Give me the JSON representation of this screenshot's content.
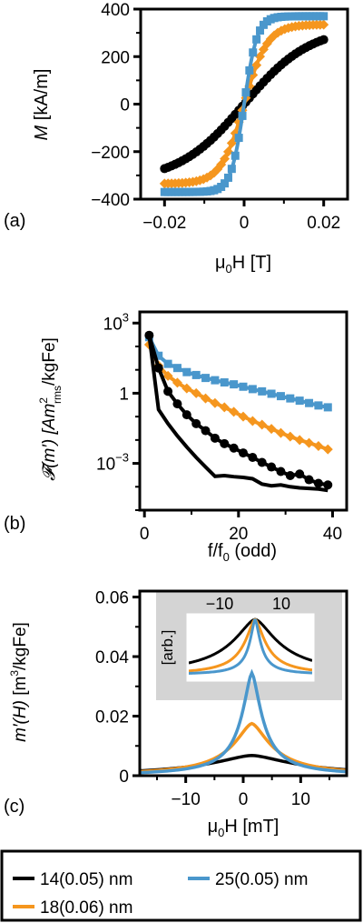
{
  "colors": {
    "d14": "#000000",
    "d18": "#f5961e",
    "d25": "#4a97cc",
    "inset_bg": "#d4d4d4"
  },
  "legend": {
    "d14": "14(0.05) nm",
    "d18": "18(0.06) nm",
    "d25": "25(0.05) nm"
  },
  "chart_data": [
    {
      "type": "scatter",
      "panel_label": "(a)",
      "xlabel_main": "μ",
      "xlabel_sub": "0",
      "xlabel_rest": "H [T]",
      "ylabel_var": "M",
      "ylabel_unit": " [kA/m]",
      "xlim": [
        -0.026,
        0.026
      ],
      "ylim": [
        -400,
        400
      ],
      "xticks": [
        -0.02,
        0,
        0.02
      ],
      "xtick_labels": [
        "−0.02",
        "0",
        "0.02"
      ],
      "yticks": [
        -400,
        -200,
        0,
        200,
        400
      ],
      "ytick_labels": [
        "−400",
        "−200",
        "0",
        "200",
        "400"
      ],
      "series": [
        {
          "key": "d14",
          "marker": "circle",
          "Ms": 325,
          "a": 0.0166
        },
        {
          "key": "d18",
          "marker": "diamond",
          "Ms": 335,
          "a": 0.0058
        },
        {
          "key": "d25",
          "marker": "square",
          "Ms": 370,
          "a": 0.0033
        }
      ],
      "x_range": [
        -0.02,
        0.02
      ]
    },
    {
      "type": "line",
      "panel_label": "(b)",
      "xlabel_main": "f/f",
      "xlabel_sub": "0",
      "xlabel_rest": " (odd)",
      "ylabel": "𝓕(m′) [Am",
      "ylabel_sup": "2",
      "ylabel_sub": "rms",
      "ylabel_rest": "/kgFe]",
      "log_y": true,
      "xlim": [
        -1,
        43
      ],
      "ylim": [
        1e-05,
        3000
      ],
      "xticks": [
        0,
        20,
        40
      ],
      "xtick_labels": [
        "0",
        "20",
        "40"
      ],
      "ytick_labels": [
        {
          "base": "10",
          "exp": "3",
          "value": 1000
        },
        {
          "base": "1",
          "exp": "",
          "value": 1
        },
        {
          "base": "10",
          "exp": "−3",
          "value": 0.001
        }
      ],
      "x": [
        1,
        3,
        5,
        7,
        9,
        11,
        13,
        15,
        17,
        19,
        21,
        23,
        25,
        27,
        29,
        31,
        33,
        35,
        37,
        39
      ],
      "series": [
        {
          "key": "d25",
          "marker": "square",
          "values": [
            250,
            40,
            18,
            12,
            8,
            6,
            4.5,
            3.6,
            2.9,
            2.4,
            1.9,
            1.5,
            1.2,
            0.95,
            0.75,
            0.6,
            0.48,
            0.38,
            0.3,
            0.25
          ]
        },
        {
          "key": "d18",
          "marker": "diamond",
          "values": [
            120,
            15,
            5.5,
            2.8,
            1.6,
            1.0,
            0.6,
            0.38,
            0.25,
            0.16,
            0.1,
            0.065,
            0.045,
            0.03,
            0.02,
            0.014,
            0.01,
            0.0075,
            0.0055,
            0.004
          ]
        },
        {
          "key": "d14",
          "marker": "circle",
          "values": [
            300,
            12,
            1.2,
            0.35,
            0.12,
            0.05,
            0.025,
            0.012,
            0.007,
            0.0045,
            0.0028,
            0.0018,
            0.0011,
            0.0007,
            0.00045,
            0.0003,
            0.00035,
            0.0002,
            0.00014,
            0.00012
          ]
        },
        {
          "key": "d14",
          "marker": "none",
          "values": [
            300,
            0.2,
            0.05,
            0.015,
            0.005,
            0.0018,
            0.0007,
            0.00028,
            0.0003,
            0.00027,
            0.00025,
            0.00022,
            0.00013,
            0.00011,
            0.00012,
            0.0001,
            9e-05,
            8.5e-05,
            8e-05,
            7e-05
          ]
        }
      ]
    },
    {
      "type": "line",
      "panel_label": "(c)",
      "xlabel_main": "μ",
      "xlabel_sub": "0",
      "xlabel_rest": "H [mT]",
      "ylabel_var": "m′(H)",
      "ylabel_rest": " [m",
      "ylabel_sup": "3",
      "ylabel_end": "/kgFe]",
      "xlim": [
        -18,
        18
      ],
      "ylim": [
        0,
        0.062
      ],
      "xticks": [
        -10,
        0,
        10
      ],
      "xtick_labels": [
        "−10",
        "0",
        "10"
      ],
      "yticks": [
        0,
        0.02,
        0.04,
        0.06
      ],
      "ytick_labels": [
        "0",
        "0.02",
        "0.04",
        "0.06"
      ],
      "series": [
        {
          "key": "d14",
          "peak": 0.0068,
          "w": 9.5
        },
        {
          "key": "d18",
          "peak": 0.0175,
          "w": 4.2
        },
        {
          "key": "d25",
          "peak": 0.0345,
          "w": 2.2
        }
      ],
      "center": 1.5,
      "inset": {
        "ylabel": "[arb.]",
        "xticks": [
          -10,
          10
        ],
        "xtick_labels": [
          "−10",
          "10"
        ],
        "xlim": [
          -20,
          20
        ]
      }
    }
  ]
}
